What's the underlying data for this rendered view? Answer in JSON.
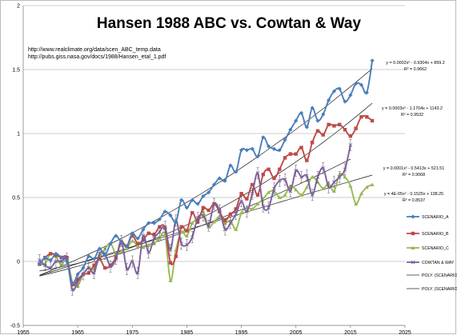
{
  "chart_data": {
    "type": "line",
    "title": "Hansen 1988 ABC vs. Cowtan & Way",
    "source_links": [
      "http://www.realclimate.org/data/scen_ABC_temp.data",
      "http://pubs.giss.nasa.gov/docs/1988/Hansen_etal_1.pdf"
    ],
    "xlim": [
      1955,
      2025
    ],
    "ylim": [
      -0.5,
      2
    ],
    "x_ticks": [
      "1955",
      "1965",
      "1975",
      "1985",
      "1995",
      "2005",
      "2015",
      "2025"
    ],
    "y_ticks": [
      "-0.5",
      "0",
      "0.5",
      "1",
      "1.5",
      "2"
    ],
    "grid": true,
    "legend_position": "right",
    "series": [
      {
        "name": "Scenario_A",
        "color": "#4a7ebb",
        "marker": "diamond",
        "x": [
          1958,
          1959,
          1960,
          1961,
          1962,
          1963,
          1964,
          1965,
          1966,
          1967,
          1968,
          1969,
          1970,
          1971,
          1972,
          1973,
          1974,
          1975,
          1976,
          1977,
          1978,
          1979,
          1980,
          1981,
          1982,
          1983,
          1984,
          1985,
          1986,
          1987,
          1988,
          1989,
          1990,
          1991,
          1992,
          1993,
          1994,
          1995,
          1996,
          1997,
          1998,
          1999,
          2000,
          2001,
          2002,
          2003,
          2004,
          2005,
          2006,
          2007,
          2008,
          2009,
          2010,
          2011,
          2012,
          2013,
          2014,
          2015,
          2016,
          2017,
          2018,
          2019
        ],
        "y": [
          -0.02,
          0.03,
          0.01,
          0.06,
          0.03,
          0.0,
          -0.17,
          -0.1,
          -0.05,
          0.04,
          0.02,
          0.1,
          0.05,
          0.14,
          0.2,
          0.15,
          0.12,
          0.22,
          0.18,
          0.25,
          0.3,
          0.3,
          0.33,
          0.39,
          0.36,
          0.31,
          0.48,
          0.42,
          0.48,
          0.45,
          0.51,
          0.54,
          0.6,
          0.65,
          0.63,
          0.75,
          0.7,
          0.87,
          0.87,
          0.88,
          0.82,
          0.97,
          0.9,
          0.88,
          0.87,
          0.95,
          1.03,
          1.1,
          1.16,
          1.05,
          1.2,
          1.1,
          1.15,
          1.26,
          1.33,
          1.35,
          1.25,
          1.3,
          1.39,
          1.38,
          1.32,
          1.57
        ]
      },
      {
        "name": "Scenario_B",
        "color": "#be4b48",
        "marker": "square",
        "x": [
          1958,
          1959,
          1960,
          1961,
          1962,
          1963,
          1964,
          1965,
          1966,
          1967,
          1968,
          1969,
          1970,
          1971,
          1972,
          1973,
          1974,
          1975,
          1976,
          1977,
          1978,
          1979,
          1980,
          1981,
          1982,
          1983,
          1984,
          1985,
          1986,
          1987,
          1988,
          1989,
          1990,
          1991,
          1992,
          1993,
          1994,
          1995,
          1996,
          1997,
          1998,
          1999,
          2000,
          2001,
          2002,
          2003,
          2004,
          2005,
          2006,
          2007,
          2008,
          2009,
          2010,
          2011,
          2012,
          2013,
          2014,
          2015,
          2016,
          2017,
          2018,
          2019
        ],
        "y": [
          -0.02,
          0.03,
          0.06,
          0.05,
          0.03,
          0.03,
          -0.18,
          -0.14,
          -0.1,
          -0.09,
          -0.03,
          0.02,
          -0.05,
          -0.03,
          0.03,
          0.15,
          0.12,
          0.2,
          0.14,
          0.17,
          0.22,
          0.21,
          0.27,
          0.26,
          -0.01,
          0.04,
          0.27,
          0.24,
          0.38,
          0.31,
          0.42,
          0.4,
          0.45,
          0.39,
          0.32,
          0.37,
          0.41,
          0.53,
          0.49,
          0.6,
          0.52,
          0.68,
          0.72,
          0.65,
          0.72,
          0.81,
          0.84,
          0.84,
          0.89,
          0.79,
          0.93,
          1.02,
          0.99,
          1.07,
          1.06,
          1.07,
          1.03,
          0.98,
          1.04,
          1.13,
          1.13,
          1.1
        ]
      },
      {
        "name": "Scenario_C",
        "color": "#98b954",
        "marker": "triangle",
        "x": [
          1958,
          1959,
          1960,
          1961,
          1962,
          1963,
          1964,
          1965,
          1966,
          1967,
          1968,
          1969,
          1970,
          1971,
          1972,
          1973,
          1974,
          1975,
          1976,
          1977,
          1978,
          1979,
          1980,
          1981,
          1982,
          1983,
          1984,
          1985,
          1986,
          1987,
          1988,
          1989,
          1990,
          1991,
          1992,
          1993,
          1994,
          1995,
          1996,
          1997,
          1998,
          1999,
          2000,
          2001,
          2002,
          2003,
          2004,
          2005,
          2006,
          2007,
          2008,
          2009,
          2010,
          2011,
          2012,
          2013,
          2014,
          2015,
          2016,
          2017,
          2018,
          2019
        ],
        "y": [
          -0.02,
          -0.02,
          0.06,
          0.04,
          -0.03,
          0.03,
          -0.16,
          -0.19,
          -0.1,
          -0.05,
          -0.06,
          0.03,
          0.1,
          0.14,
          0.06,
          0.08,
          0.1,
          0.16,
          0.12,
          0.11,
          0.13,
          0.14,
          0.18,
          0.21,
          -0.15,
          0.09,
          0.23,
          0.2,
          0.3,
          0.33,
          0.39,
          0.27,
          0.31,
          0.35,
          0.3,
          0.32,
          0.25,
          0.38,
          0.42,
          0.41,
          0.45,
          0.49,
          0.54,
          0.55,
          0.5,
          0.52,
          0.59,
          0.56,
          0.52,
          0.58,
          0.66,
          0.62,
          0.57,
          0.61,
          0.55,
          0.68,
          0.66,
          0.59,
          0.45,
          0.53,
          0.58,
          0.6
        ]
      },
      {
        "name": "Cowtan & Way",
        "color": "#7d5fa0",
        "marker": "cross",
        "error_bars": true,
        "x": [
          1958,
          1959,
          1960,
          1961,
          1962,
          1963,
          1964,
          1965,
          1966,
          1967,
          1968,
          1969,
          1970,
          1971,
          1972,
          1973,
          1974,
          1975,
          1976,
          1977,
          1978,
          1979,
          1980,
          1981,
          1982,
          1983,
          1984,
          1985,
          1986,
          1987,
          1988,
          1989,
          1990,
          1991,
          1992,
          1993,
          1994,
          1995,
          1996,
          1997,
          1998,
          1999,
          2000,
          2001,
          2002,
          2003,
          2004,
          2005,
          2006,
          2007,
          2008,
          2009,
          2010,
          2011,
          2012,
          2013,
          2014,
          2015
        ],
        "y": [
          0.01,
          -0.03,
          -0.05,
          0.0,
          0.0,
          0.02,
          -0.22,
          -0.16,
          -0.1,
          -0.05,
          -0.09,
          0.06,
          0.06,
          -0.04,
          0.02,
          0.16,
          -0.06,
          0.0,
          -0.09,
          0.2,
          0.07,
          0.18,
          0.23,
          0.27,
          0.09,
          0.32,
          0.14,
          0.13,
          0.19,
          0.34,
          0.36,
          0.28,
          0.45,
          0.4,
          0.25,
          0.3,
          0.37,
          0.47,
          0.39,
          0.53,
          0.69,
          0.43,
          0.42,
          0.57,
          0.63,
          0.64,
          0.55,
          0.71,
          0.66,
          0.67,
          0.52,
          0.66,
          0.73,
          0.58,
          0.62,
          0.66,
          0.72,
          0.91
        ]
      }
    ],
    "trendlines": [
      {
        "name": "Poly. (Scenario_A)",
        "equation": "y = 0.0002x² - 0.9304x + 899.2",
        "r2": "R² = 0.9662"
      },
      {
        "name": "Poly. (Scenario_B)",
        "equation": "y = 0.0003x² - 1.1704x + 1143.2",
        "r2": "R² = 0.9532"
      },
      {
        "name": "",
        "equation": "y = 0.0001x² - 0.5413x + 521.51",
        "r2": "R² = 0.9068"
      },
      {
        "name": "",
        "equation": "y = 4E-05x² - 0.1525x + 138.25",
        "r2": "R² = 0.8537"
      }
    ],
    "legend_labels": [
      "Scenario_A",
      "Scenario_B",
      "Scenario_C",
      "Cowtan & Way",
      "Poly. (Scenario_A)",
      "Poly. (Scenario_B)"
    ]
  }
}
